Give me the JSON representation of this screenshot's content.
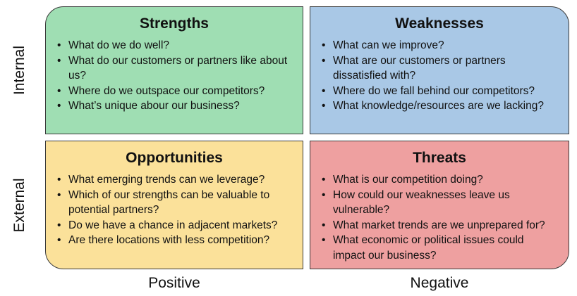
{
  "axes": {
    "internal": "Internal",
    "external": "External",
    "positive": "Positive",
    "negative": "Negative"
  },
  "strengths": {
    "title": "Strengths",
    "items": [
      "What do we do well?",
      "What do our customers or partners like about us?",
      "Where do we outspace our competitors?",
      "What’s unique abour our business?"
    ]
  },
  "weaknesses": {
    "title": "Weaknesses",
    "items": [
      "What can we improve?",
      "What are our customers or partners dissatisfied with?",
      "Where do we fall behind our competitors?",
      "What knowledge/resources are we lacking?"
    ]
  },
  "opportunities": {
    "title": "Opportunities",
    "items": [
      "What emerging trends can we leverage?",
      "Which of our strengths can be valuable to potential partners?",
      "Do we have a chance in adjacent markets?",
      "Are there locations with less competition?"
    ]
  },
  "threats": {
    "title": "Threats",
    "items": [
      "What is our competition doing?",
      "How could our weaknesses leave us vulnerable?",
      "What market trends are we unprepared for?",
      "What economic or political issues could impact our business?"
    ]
  },
  "colors": {
    "strengths": "#9fdeb3",
    "weaknesses": "#a9c8e6",
    "opportunities": "#fbe19a",
    "threats": "#eea0a0"
  }
}
